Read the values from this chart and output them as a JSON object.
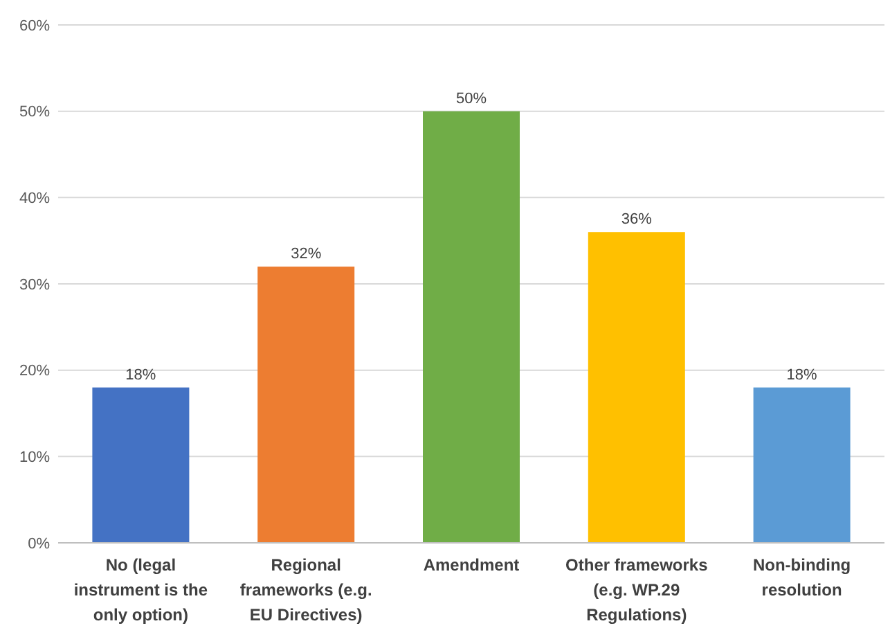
{
  "chart_data": {
    "type": "bar",
    "categories": [
      "No (legal instrument is the only option)",
      "Regional frameworks (e.g. EU Directives)",
      "Amendment",
      "Other frameworks (e.g. WP.29 Regulations)",
      "Non-binding resolution"
    ],
    "values": [
      18,
      32,
      50,
      36,
      18
    ],
    "colors": [
      "#4472c4",
      "#ed7d31",
      "#70ad47",
      "#ffc000",
      "#5b9bd5"
    ],
    "value_labels": [
      "18%",
      "32%",
      "50%",
      "36%",
      "18%"
    ],
    "ylim": [
      0,
      60
    ],
    "yticks": [
      {
        "value": 0,
        "label": "0%"
      },
      {
        "value": 10,
        "label": "10%"
      },
      {
        "value": 20,
        "label": "20%"
      },
      {
        "value": 30,
        "label": "30%"
      },
      {
        "value": 40,
        "label": "40%"
      },
      {
        "value": 50,
        "label": "50%"
      },
      {
        "value": 60,
        "label": "60%"
      }
    ],
    "grid": "y"
  }
}
